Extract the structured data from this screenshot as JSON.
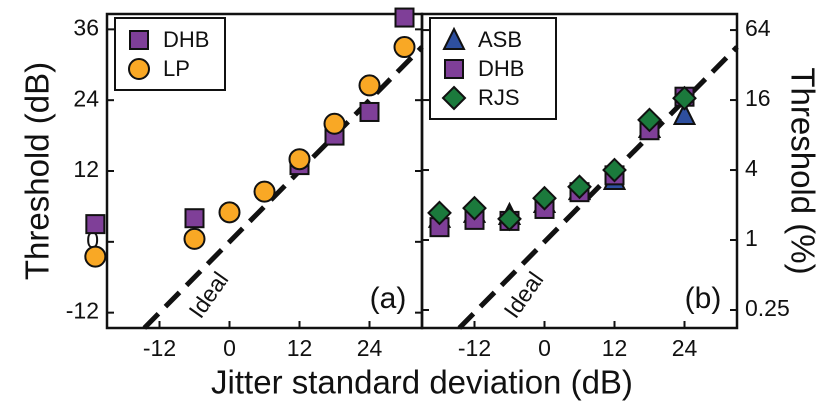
{
  "chart_data": [
    {
      "type": "scatter",
      "ylabel": "Threshold (dB)",
      "xlabel": "Jitter standard deviation (dB)",
      "annotations": [
        "(a)",
        "Ideal"
      ],
      "legend": "upper left",
      "xlim": [
        -21,
        33
      ],
      "xticks": [
        -12,
        0,
        12,
        24
      ],
      "ylim": [
        -14.6,
        38.6
      ],
      "yticks": [
        -12,
        0,
        12,
        24,
        36
      ],
      "ideal": "y=x",
      "series": [
        {
          "name": "DHB",
          "color": "#7f3f98",
          "marker": "square",
          "x": [
            -23,
            -6,
            12,
            18,
            24,
            30
          ],
          "values": [
            3,
            4,
            13,
            18,
            22,
            38
          ]
        },
        {
          "name": "LP",
          "color": "#f9a825",
          "marker": "circle",
          "x": [
            -23,
            -6,
            0,
            6,
            12,
            18,
            24,
            30
          ],
          "values": [
            -2.5,
            0.5,
            5,
            8.5,
            14,
            20,
            26.5,
            33
          ]
        }
      ]
    },
    {
      "type": "scatter",
      "ylabel": "Threshold (%)",
      "annotations": [
        "(b)",
        "Ideal"
      ],
      "legend": "upper left",
      "xlim": [
        -21,
        33
      ],
      "xticks": [
        -12,
        0,
        12,
        24
      ],
      "y2lim": [
        0.175,
        88
      ],
      "y2ticks": [
        0.25,
        1,
        4,
        16,
        64
      ],
      "ylog": true,
      "ideal": "y=x",
      "series": [
        {
          "name": "ASB",
          "color": "#2e4f9f",
          "marker": "triangle",
          "axis": "y2",
          "x": [
            -18,
            -12,
            -6,
            0,
            6,
            12,
            18,
            24
          ],
          "values": [
            1.55,
            1.71,
            1.64,
            2.08,
            2.69,
            3.28,
            9.2,
            11.9
          ]
        },
        {
          "name": "DHB",
          "color": "#7f3f98",
          "marker": "square",
          "axis": "y2",
          "x": [
            -18,
            -12,
            -6,
            0,
            6,
            12,
            18,
            24
          ],
          "values": [
            1.29,
            1.49,
            1.46,
            1.85,
            2.58,
            3.6,
            8.8,
            17.1
          ]
        },
        {
          "name": "RJS",
          "color": "#1b7a3c",
          "marker": "diamond",
          "axis": "y2",
          "x": [
            -18,
            -12,
            -6,
            0,
            6,
            12,
            18,
            24
          ],
          "values": [
            1.71,
            1.88,
            1.52,
            2.29,
            2.87,
            4,
            10.8,
            16.6
          ]
        }
      ]
    }
  ]
}
